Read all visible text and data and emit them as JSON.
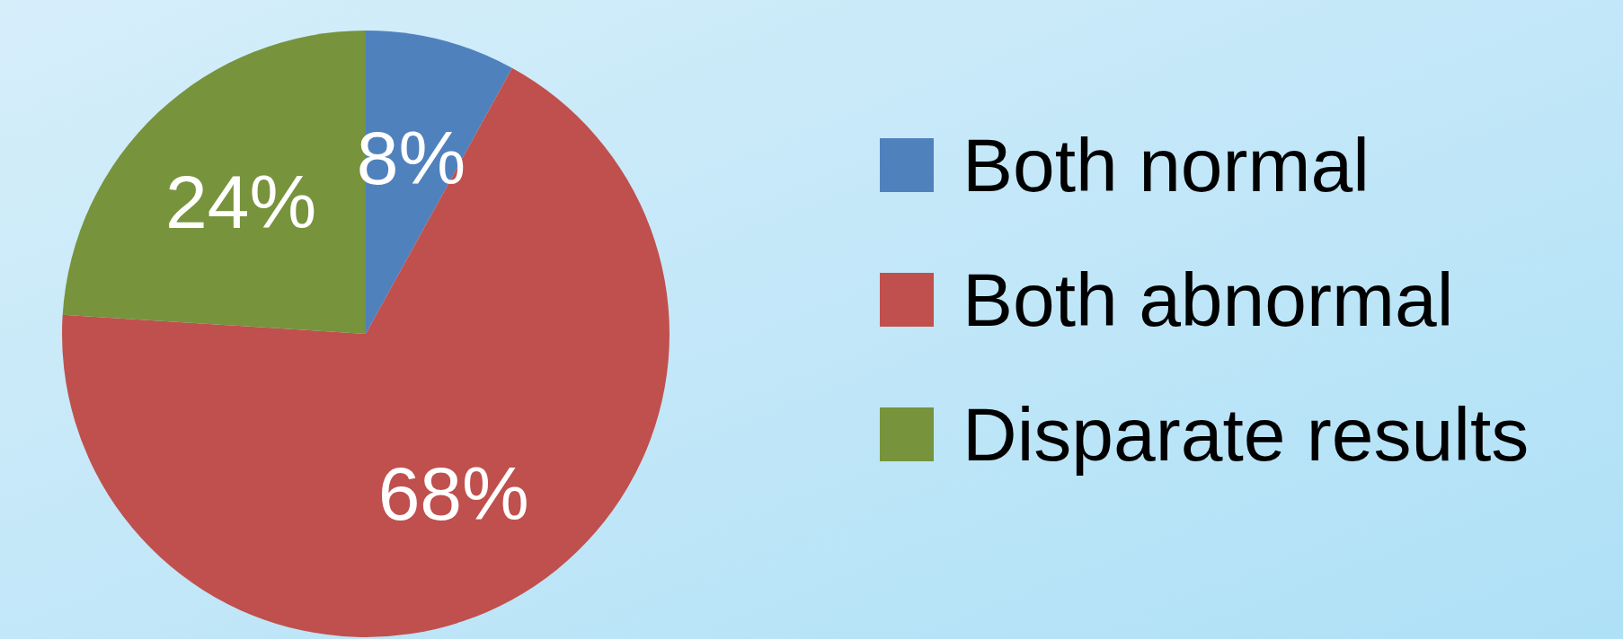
{
  "chart_data": {
    "type": "pie",
    "categories": [
      "Both normal",
      "Both abnormal",
      "Disparate results"
    ],
    "values": [
      8,
      68,
      24
    ],
    "colors": [
      "#4f81bd",
      "#c0504d",
      "#77933c"
    ],
    "value_labels": [
      "8%",
      "68%",
      "24%"
    ],
    "legend": "right"
  }
}
